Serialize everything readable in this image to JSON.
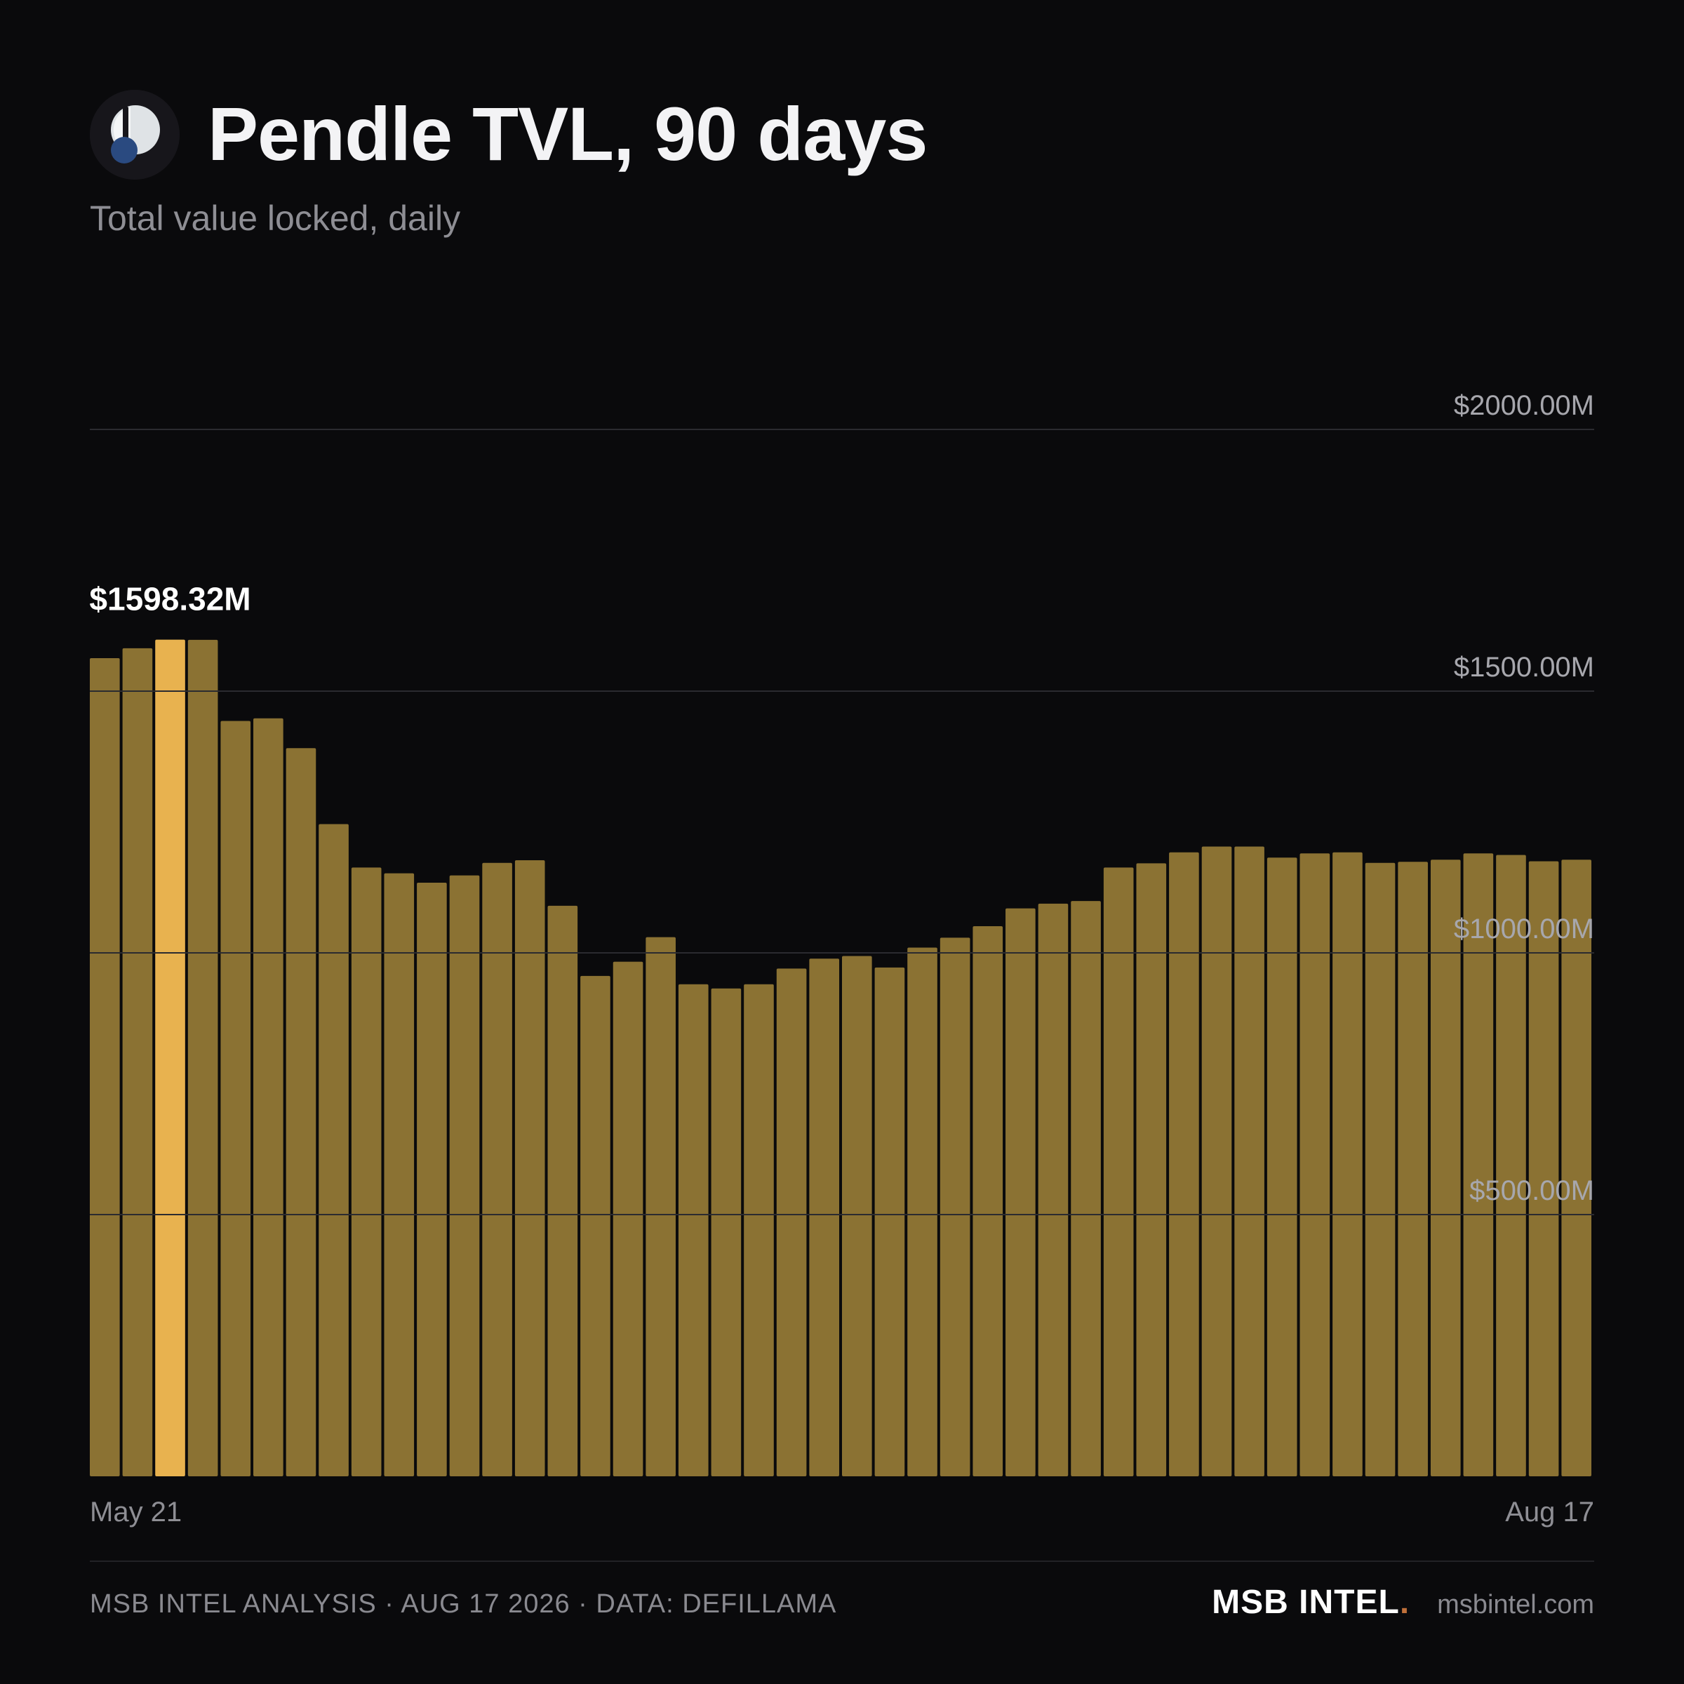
{
  "header": {
    "title": "Pendle TVL, 90 days",
    "subtitle": "Total value locked, daily"
  },
  "colors": {
    "background": "#0a0a0c",
    "bar": "#8b7233",
    "bar_highlight": "#e8b24f",
    "brand_dot": "#c0703a",
    "logo_light": "#dfe3e6",
    "logo_blue": "#2a4a80"
  },
  "chart_data": {
    "type": "bar",
    "title": "Pendle TVL, 90 days",
    "subtitle": "Total value locked, daily",
    "x_start_label": "May 21",
    "x_end_label": "Aug 17",
    "y_ticks": [
      "$500.00M",
      "$1000.00M",
      "$1500.00M",
      "$2000.00M"
    ],
    "y_tick_values": [
      500,
      1000,
      1500,
      2000
    ],
    "ylim": [
      0,
      2000
    ],
    "grid": true,
    "highlight_index": 2,
    "highlight_label": "$1598.32M",
    "values": [
      1563,
      1582,
      1598.32,
      1598,
      1443,
      1448,
      1391,
      1246,
      1163,
      1152,
      1134,
      1148,
      1172,
      1177,
      1090,
      956,
      983,
      1030,
      940,
      932,
      940,
      970,
      989,
      994,
      972,
      1010,
      1029,
      1051,
      1085,
      1094,
      1099,
      1163,
      1171,
      1192,
      1203,
      1203,
      1182,
      1190,
      1192,
      1172,
      1174,
      1178,
      1190,
      1187,
      1175,
      1178
    ]
  },
  "footer": {
    "left": "MSB INTEL ANALYSIS · AUG 17 2026 · DATA: DEFILLAMA",
    "brand": "MSB INTEL",
    "brand_dot": ".",
    "site": "msbintel.com"
  }
}
